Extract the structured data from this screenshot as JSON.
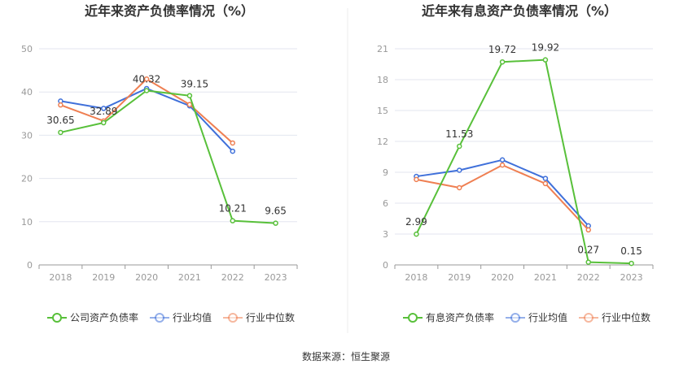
{
  "source_label": "数据来源：恒生聚源",
  "colors": {
    "company": "#58c03a",
    "avg": "#3f70da",
    "median": "#ef7f52"
  },
  "chart_data": [
    {
      "type": "line",
      "title": "近年来资产负债率情况（%）",
      "categories": [
        "2018",
        "2019",
        "2020",
        "2021",
        "2022",
        "2023"
      ],
      "ylim": [
        0,
        50
      ],
      "yticks": [
        0,
        10,
        20,
        30,
        40,
        50
      ],
      "series": [
        {
          "key": "company",
          "name": "公司资产负债率",
          "values": [
            30.65,
            32.89,
            40.32,
            39.15,
            10.21,
            9.65
          ],
          "labels": [
            "30.65",
            "32.89",
            "40.32",
            "39.15",
            "10.21",
            "9.65"
          ]
        },
        {
          "key": "avg",
          "name": "行业均值",
          "values": [
            37.9,
            36.2,
            40.8,
            36.8,
            26.3,
            null
          ]
        },
        {
          "key": "median",
          "name": "行业中位数",
          "values": [
            37.0,
            33.3,
            43.0,
            37.1,
            28.2,
            null
          ]
        }
      ]
    },
    {
      "type": "line",
      "title": "近年来有息资产负债率情况（%）",
      "categories": [
        "2018",
        "2019",
        "2020",
        "2021",
        "2022",
        "2023"
      ],
      "ylim": [
        0,
        21
      ],
      "yticks": [
        0,
        3,
        6,
        9,
        12,
        15,
        18,
        21
      ],
      "series": [
        {
          "key": "company",
          "name": "有息资产负债率",
          "values": [
            2.99,
            11.53,
            19.72,
            19.92,
            0.27,
            0.15
          ],
          "labels": [
            "2.99",
            "11.53",
            "19.72",
            "19.92",
            "0.27",
            "0.15"
          ]
        },
        {
          "key": "avg",
          "name": "行业均值",
          "values": [
            8.6,
            9.2,
            10.2,
            8.4,
            3.8,
            null
          ]
        },
        {
          "key": "median",
          "name": "行业中位数",
          "values": [
            8.3,
            7.5,
            9.7,
            7.9,
            3.4,
            null
          ]
        }
      ]
    }
  ]
}
